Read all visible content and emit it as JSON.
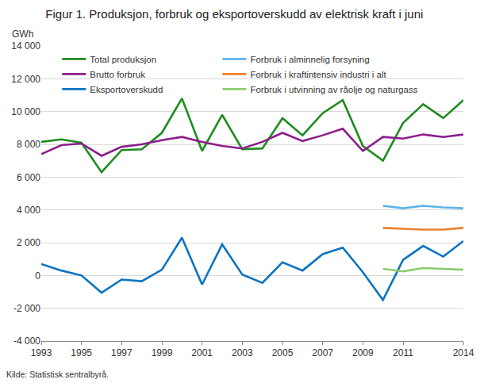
{
  "chart_data": {
    "type": "line",
    "title": "Figur 1. Produksjon, forbruk og eksportoverskudd av elektrisk kraft i juni",
    "y_label": "GWh",
    "source": "Kilde: Statistisk sentralbyrå.",
    "x": [
      1993,
      1994,
      1995,
      1996,
      1997,
      1998,
      1999,
      2000,
      2001,
      2002,
      2003,
      2004,
      2005,
      2006,
      2007,
      2008,
      2009,
      2010,
      2011,
      2012,
      2013,
      2014
    ],
    "series": [
      {
        "name": "Total produksjon",
        "color": "#1e8c1e",
        "values": [
          8150,
          8300,
          8100,
          6300,
          7650,
          7700,
          8700,
          10800,
          7600,
          9800,
          7700,
          7750,
          9600,
          8550,
          9900,
          10700,
          7900,
          7000,
          9300,
          10450,
          9600,
          10700
        ]
      },
      {
        "name": "Brutto forbruk",
        "color": "#8b1e8b",
        "values": [
          7400,
          7950,
          8050,
          7300,
          7850,
          8000,
          8250,
          8450,
          8150,
          7900,
          7750,
          8150,
          8700,
          8200,
          8550,
          8950,
          7600,
          8450,
          8350,
          8600,
          8450,
          8600
        ]
      },
      {
        "name": "Eksportoverskudd",
        "color": "#0a74c2",
        "values": [
          700,
          300,
          0,
          -1050,
          -250,
          -350,
          350,
          2300,
          -550,
          1900,
          50,
          -450,
          800,
          300,
          1300,
          1700,
          200,
          -1500,
          950,
          1800,
          1150,
          2100
        ]
      },
      {
        "name": "Forbruk i alminnelig forsyning",
        "color": "#5bb5e6",
        "values": [
          null,
          null,
          null,
          null,
          null,
          null,
          null,
          null,
          null,
          null,
          null,
          null,
          null,
          null,
          null,
          null,
          null,
          4250,
          4100,
          4250,
          4150,
          4100
        ]
      },
      {
        "name": "Forbruk i kraftintensiv industri i alt",
        "color": "#f07f2a",
        "values": [
          null,
          null,
          null,
          null,
          null,
          null,
          null,
          null,
          null,
          null,
          null,
          null,
          null,
          null,
          null,
          null,
          null,
          2900,
          2850,
          2800,
          2800,
          2900
        ]
      },
      {
        "name": "Forbruk i utvinning av råolje og naturgass",
        "color": "#8ccc6e",
        "values": [
          null,
          null,
          null,
          null,
          null,
          null,
          null,
          null,
          null,
          null,
          null,
          null,
          null,
          null,
          null,
          null,
          null,
          400,
          250,
          450,
          400,
          350
        ]
      }
    ],
    "xlim": [
      1993,
      2014
    ],
    "xticks": [
      1993,
      1995,
      1997,
      1999,
      2001,
      2003,
      2005,
      2007,
      2009,
      2011,
      2014
    ],
    "ylim": [
      -4000,
      14000
    ],
    "yticks": [
      {
        "value": -4000,
        "label": "-4 000"
      },
      {
        "value": -2000,
        "label": "-2 000"
      },
      0,
      {
        "value": 2000,
        "label": "2 000"
      },
      {
        "value": 4000,
        "label": "4 000"
      },
      {
        "value": 6000,
        "label": "6 000"
      },
      {
        "value": 8000,
        "label": "8 000"
      },
      {
        "value": 10000,
        "label": "10 000"
      },
      {
        "value": 12000,
        "label": "12 000"
      },
      {
        "value": 14000,
        "label": "14 000"
      }
    ],
    "grid": true,
    "legend": "upper left"
  }
}
